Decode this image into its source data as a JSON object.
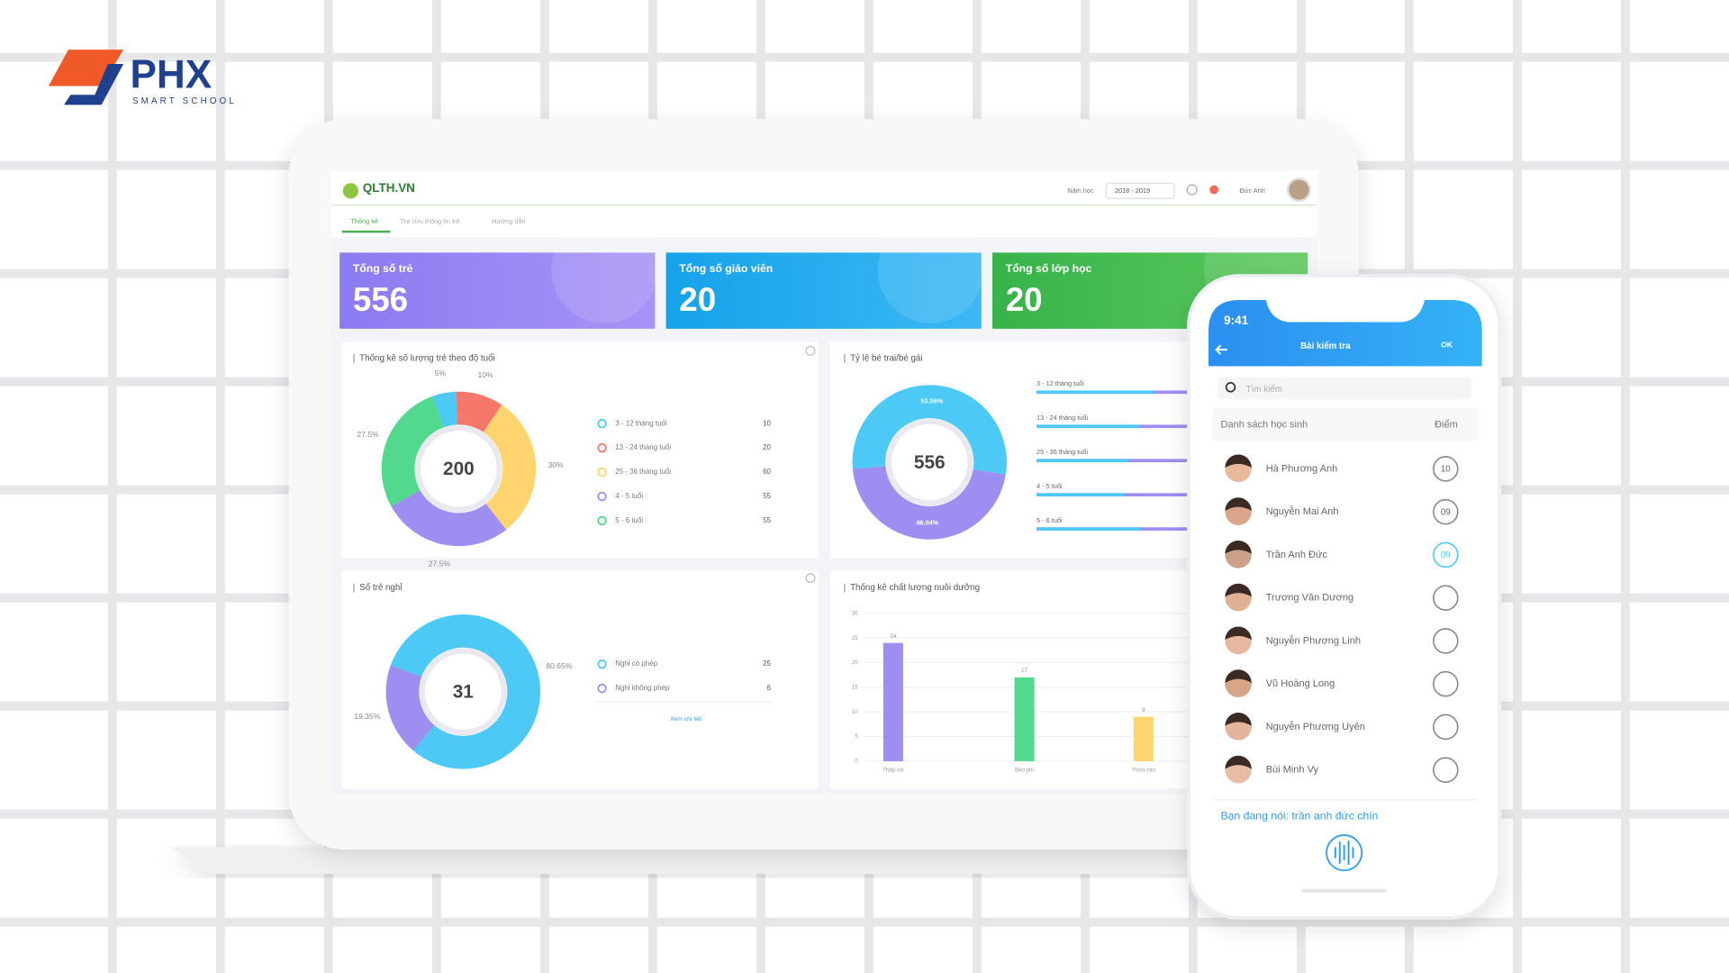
{
  "brand": {
    "name": "PHX",
    "tagline": "SMART SCHOOL"
  },
  "dashboard": {
    "logo": "QLTH.VN",
    "year_label": "Năm học",
    "year": "2018 - 2019",
    "user": "Đức Anh",
    "tabs": [
      "Thống kê",
      "Tra cứu thông tin trẻ",
      "Hướng dẫn"
    ],
    "cards": [
      {
        "label": "Tổng số trẻ",
        "value": 556
      },
      {
        "label": "Tổng số giáo viên",
        "value": 20
      },
      {
        "label": "Tổng số lớp học",
        "value": 20
      }
    ],
    "age_chart": {
      "type": "donut",
      "title": "Thống kê số lượng trẻ theo độ tuổi",
      "total": 200,
      "categories": [
        "3 - 12 tháng tuổi",
        "13 - 24 tháng tuổi",
        "25 - 36 tháng tuổi",
        "4 - 5 tuổi",
        "5 - 6 tuổi"
      ],
      "values": [
        10,
        20,
        60,
        55,
        55
      ],
      "value_labels": [
        "5%",
        "10%",
        "30%",
        "27.5%",
        "27.5%"
      ],
      "colors": [
        "#4dc9f6",
        "#f8776b",
        "#ffd36e",
        "#9d8ff2",
        "#52d98e"
      ]
    },
    "gender_chart": {
      "type": "donut",
      "title": "Tỷ lệ bé trai/bé gái",
      "total": 556,
      "values": [
        53.96,
        46.04
      ],
      "value_labels": [
        "53.96%",
        "46.04%"
      ],
      "colors": [
        "#4dc9f6",
        "#9d8ff2"
      ],
      "groups": [
        "3 - 12 tháng tuổi",
        "13 - 24 tháng tuổi",
        "25 - 36 tháng tuổi",
        "4 - 5 tuổi",
        "5 - 6 tuổi"
      ],
      "group_boys_percent": [
        71,
        62,
        56,
        53,
        63
      ]
    },
    "absence_chart": {
      "type": "donut",
      "title": "Số trẻ nghỉ",
      "total": 31,
      "categories": [
        "Nghỉ có phép",
        "Nghỉ không phép"
      ],
      "values": [
        25,
        6
      ],
      "value_labels": [
        "80.65%",
        "19.35%"
      ],
      "colors": [
        "#4dc9f6",
        "#9d8ff2"
      ],
      "link": "Xem chi tiết"
    },
    "nutrition_chart": {
      "type": "bar",
      "title": "Thống kê chất lượng nuôi dưỡng",
      "categories": [
        "Thấp còi",
        "Béo phì",
        "Thừa cân"
      ],
      "values": [
        24,
        17,
        9
      ],
      "colors": [
        "#9d8ff2",
        "#52d98e",
        "#ffd36e"
      ],
      "ylim": [
        0,
        30
      ],
      "yticks": [
        0,
        5,
        10,
        15,
        20,
        25,
        30
      ]
    }
  },
  "phone": {
    "time": "9:41",
    "title": "Bài kiểm tra",
    "action": "OK",
    "search_placeholder": "Tìm kiếm",
    "list_header": "Danh sách học sinh",
    "score_header": "Điểm",
    "students": [
      {
        "name": "Hà Phương Anh",
        "score": "10"
      },
      {
        "name": "Nguyễn Mai Anh",
        "score": "09"
      },
      {
        "name": "Trần Anh Đức",
        "score": "09"
      },
      {
        "name": "Trương Văn Dương"
      },
      {
        "name": "Nguyễn Phương Linh"
      },
      {
        "name": "Vũ Hoàng Long"
      },
      {
        "name": "Nguyễn Phương Uyên"
      },
      {
        "name": "Bùi Minh Vy"
      }
    ],
    "voice_text": "Bạn đang nói: trần anh đức chín"
  }
}
